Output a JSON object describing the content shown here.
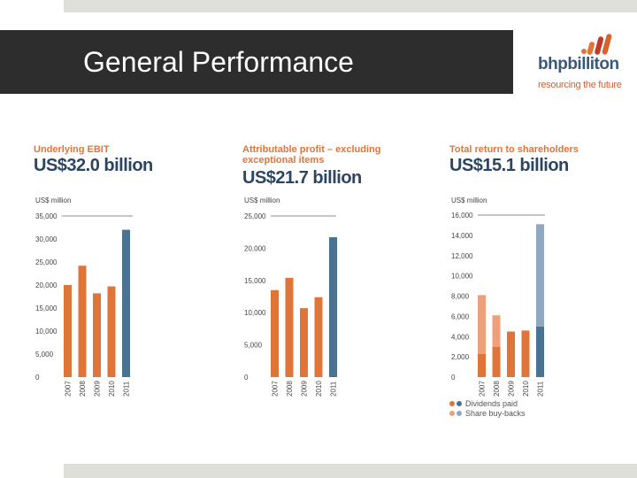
{
  "slide": {
    "title": "General Performance",
    "logo": {
      "name": "bhpbilliton",
      "tagline": "resourcing the future"
    }
  },
  "colors": {
    "orange": "#e0753a",
    "light_orange": "#eda07a",
    "blue": "#4a7391",
    "light_blue": "#90a9be",
    "title_bar": "#2d2d2d",
    "text_orange": "#e0753a",
    "text_navy": "#2c4560"
  },
  "chart_data": [
    {
      "type": "bar",
      "title": "Underlying EBIT",
      "headline": "US$32.0 billion",
      "ylabel": "US$ million",
      "categories": [
        "2007",
        "2008",
        "2009",
        "2010",
        "2011"
      ],
      "values": [
        20000,
        24200,
        18200,
        19700,
        32000
      ],
      "ylim": [
        0,
        35000
      ],
      "yticks": [
        "35,000",
        "30,000",
        "25,000",
        "20,000",
        "15,000",
        "10,000",
        "5,000",
        "0"
      ]
    },
    {
      "type": "bar",
      "title": "Attributable profit – excluding exceptional items",
      "title_lines": [
        "Attributable profit – excluding",
        "exceptional items"
      ],
      "headline": "US$21.7 billion",
      "ylabel": "US$ million",
      "categories": [
        "2007",
        "2008",
        "2009",
        "2010",
        "2011"
      ],
      "values": [
        13500,
        15400,
        10700,
        12400,
        21700
      ],
      "ylim": [
        0,
        25000
      ],
      "yticks": [
        "25,000",
        "20,000",
        "15,000",
        "10,000",
        "5,000",
        "0"
      ]
    },
    {
      "type": "bar",
      "title": "Total return to shareholders",
      "headline": "US$15.1 billion",
      "ylabel": "US$ million",
      "categories": [
        "2007",
        "2008",
        "2009",
        "2010",
        "2011"
      ],
      "series": [
        {
          "name": "Dividends paid",
          "values": [
            2300,
            3000,
            4500,
            4600,
            5000
          ]
        },
        {
          "name": "Share buy-backs",
          "values": [
            5800,
            3100,
            0,
            0,
            10100
          ]
        }
      ],
      "ylim": [
        0,
        16000
      ],
      "yticks": [
        "16,000",
        "14,000",
        "12,000",
        "10,000",
        "8,000",
        "6,000",
        "4,000",
        "2,000",
        "0"
      ],
      "legend": [
        "Dividends paid",
        "Share buy-backs"
      ]
    }
  ]
}
